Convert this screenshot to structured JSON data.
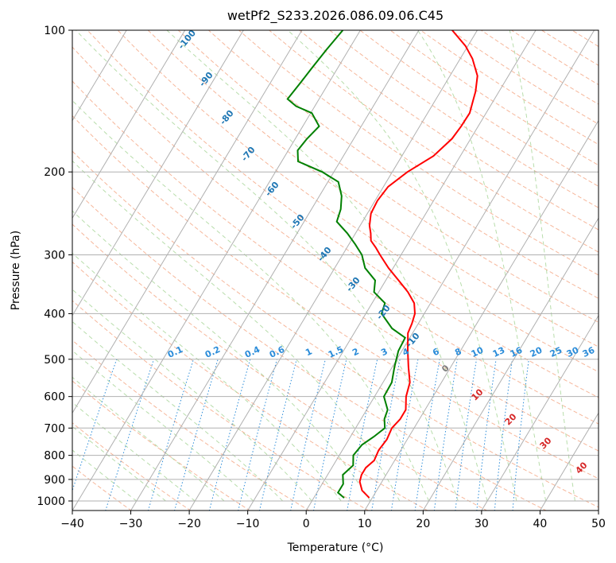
{
  "chart_data": {
    "type": "line",
    "title": "wetPf2_S233.2026.086.09.06.C45",
    "xlabel": "Temperature (°C)",
    "ylabel": "Pressure (hPa)",
    "xlim": [
      -40,
      50
    ],
    "ylim": [
      1050,
      100
    ],
    "y_scale": "log",
    "skew": "skew-T log-p",
    "grid": true,
    "x_ticks": [
      -40,
      -30,
      -20,
      -10,
      0,
      10,
      20,
      30,
      40,
      50
    ],
    "y_ticks": [
      100,
      200,
      300,
      400,
      500,
      600,
      700,
      800,
      900,
      1000
    ],
    "dry_adiabat_labels": [
      "-100",
      "-90",
      "-80",
      "-70",
      "-60",
      "-50",
      "-40",
      "-30",
      "-20",
      "-10"
    ],
    "mixing_ratio_labels": [
      "0.1",
      "0.2",
      "0.4",
      "0.6",
      "1",
      "1.5",
      "2",
      "3",
      "4",
      "6",
      "8",
      "10",
      "13",
      "16",
      "20",
      "25",
      "30",
      "36"
    ],
    "moist_adiabat_labels": [
      "0",
      "10",
      "20",
      "30",
      "40"
    ],
    "series": [
      {
        "name": "Temperature",
        "color": "#ff0000",
        "pressure": [
          985,
          950,
          910,
          880,
          850,
          820,
          780,
          740,
          700,
          670,
          640,
          600,
          560,
          520,
          480,
          440,
          420,
          400,
          380,
          360,
          340,
          320,
          300,
          290,
          280,
          270,
          260,
          245,
          230,
          215,
          200,
          185,
          170,
          160,
          150,
          140,
          135,
          125,
          115,
          108,
          100
        ],
        "temperature": [
          9.5,
          7.5,
          6.2,
          5.8,
          5.8,
          6.5,
          6.2,
          6.5,
          6.2,
          6.7,
          6.7,
          5.4,
          4.6,
          2.8,
          1.0,
          -0.8,
          -1.1,
          -1.6,
          -2.8,
          -5.0,
          -7.8,
          -10.8,
          -13.6,
          -15.0,
          -16.6,
          -17.4,
          -18.4,
          -19.4,
          -19.6,
          -19.2,
          -17.4,
          -14.6,
          -13.2,
          -12.9,
          -12.8,
          -13.6,
          -14.0,
          -15.3,
          -17.9,
          -20.4,
          -24.3
        ]
      },
      {
        "name": "Dewpoint",
        "color": "#008000",
        "pressure": [
          985,
          960,
          920,
          880,
          840,
          800,
          760,
          730,
          700,
          670,
          640,
          600,
          560,
          520,
          480,
          450,
          430,
          400,
          380,
          360,
          340,
          320,
          300,
          285,
          270,
          255,
          240,
          225,
          210,
          200,
          190,
          180,
          170,
          160,
          150,
          145,
          140,
          130,
          120,
          110,
          100
        ],
        "temperature": [
          5.2,
          3.6,
          3.6,
          2.6,
          3.4,
          2.4,
          2.8,
          4.0,
          5.0,
          4.0,
          3.6,
          1.6,
          1.5,
          0.4,
          -0.6,
          -0.8,
          -4.0,
          -7.3,
          -7.8,
          -10.8,
          -11.8,
          -14.8,
          -16.7,
          -18.9,
          -21.4,
          -24.4,
          -25.0,
          -26.2,
          -28.2,
          -32.0,
          -37.2,
          -38.4,
          -38.0,
          -37.2,
          -39.8,
          -43.2,
          -45.4,
          -44.9,
          -44.4,
          -43.8,
          -43.0
        ]
      }
    ]
  }
}
